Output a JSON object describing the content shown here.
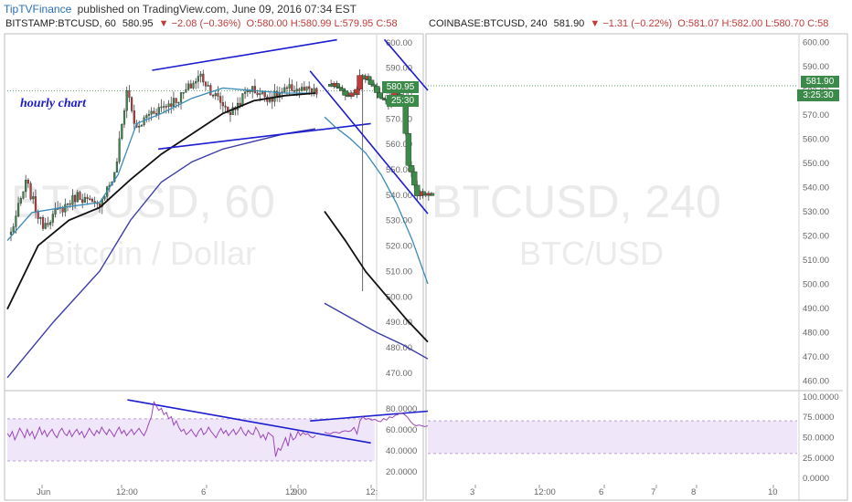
{
  "header": {
    "brand": "TipTVFinance",
    "published": "published on TradingView.com, June 09, 2016 07:34 EST"
  },
  "left_panel": {
    "symbol": "BITSTAMP:BTCUSD, 60",
    "last": "580.95",
    "arrow": "▼",
    "change": "−2.08 (−0.36%)",
    "ohlc": "O:580.00 H:580.99 L:579.95 C:58",
    "annotation": "hourly chart",
    "watermark_symbol": "BTCUSD, 60",
    "watermark_name": "Bitcoin / Dollar",
    "price_badge": "580.95",
    "countdown_badge": "25:30"
  },
  "right_panel": {
    "symbol": "COINBASE:BTCUSD, 240",
    "last": "581.90",
    "arrow": "▼",
    "change": "−1.31 (−0.22%)",
    "ohlc": "O:581.07 H:582.00 L:580.70 C:58",
    "watermark_symbol": "BTCUSD, 240",
    "watermark_name": "BTC/USD",
    "price_badge": "581.90",
    "countdown_badge": "3:25:30"
  },
  "colors": {
    "up": "#3c8a4a",
    "down": "#c23a3a",
    "trendline": "#1c1cd0",
    "ma_fast": "#3a8ab8",
    "ma_mid": "#111111",
    "ma_slow": "#3c3cab",
    "rsi": "#9a48b8",
    "rsi_band": "#eadcf7",
    "badge_price": "#3c8a4a",
    "badge_text": "#ffffff"
  },
  "chart_data": [
    {
      "type": "candlestick",
      "panel": "left",
      "title": "BITSTAMP:BTCUSD, 60",
      "price_ticks": [
        470,
        480,
        490,
        500,
        510,
        520,
        530,
        540,
        550,
        560,
        570,
        580,
        590,
        600
      ],
      "price_labels": [
        "470.00",
        "480.00",
        "490.00",
        "500.00",
        "510.00",
        "520.00",
        "530.00",
        "540.00",
        "550.00",
        "560.00",
        "570.00",
        "580.00",
        "590.00",
        "600.00"
      ],
      "ylim": [
        464,
        603
      ],
      "time_labels": [
        "Jun",
        "12:00",
        "6",
        "12:00",
        "9",
        "12:"
      ],
      "rsi_ticks": [
        20,
        40,
        60,
        80
      ],
      "rsi_labels": [
        "20.0000",
        "40.0000",
        "60.0000",
        "80.0000"
      ],
      "rsi_ylim": [
        10,
        95
      ],
      "rsi_band": [
        30,
        70
      ],
      "rsi_values": [
        56,
        53,
        58,
        50,
        55,
        61,
        57,
        52,
        60,
        54,
        58,
        51,
        56,
        62,
        55,
        59,
        53,
        57,
        60,
        55,
        52,
        58,
        61,
        56,
        54,
        59,
        53,
        57,
        60,
        55,
        58,
        52,
        56,
        61,
        57,
        54,
        59,
        56,
        62,
        58,
        55,
        60,
        57,
        53,
        58,
        62,
        56,
        59,
        54,
        57,
        60,
        55,
        58,
        61,
        57,
        54,
        59,
        66,
        72,
        86,
        82,
        78,
        80,
        74,
        76,
        70,
        72,
        64,
        68,
        62,
        58,
        60,
        55,
        57,
        60,
        56,
        53,
        58,
        61,
        55,
        57,
        62,
        58,
        55,
        52,
        57,
        61,
        56,
        59,
        54,
        57,
        60,
        55,
        58,
        62,
        57,
        54,
        59,
        56,
        55,
        62,
        58,
        52,
        55,
        50,
        57,
        55,
        53,
        34,
        42,
        40,
        46,
        52,
        44,
        56,
        50,
        52,
        58,
        54,
        57,
        55,
        56,
        53,
        52,
        54
      ]
    },
    {
      "type": "candlestick",
      "panel": "right",
      "title": "COINBASE:BTCUSD, 240",
      "price_ticks": [
        460,
        470,
        480,
        490,
        500,
        510,
        520,
        530,
        540,
        550,
        560,
        570,
        580,
        590,
        600
      ],
      "price_labels": [
        "460.00",
        "470.00",
        "480.00",
        "490.00",
        "500.00",
        "510.00",
        "520.00",
        "530.00",
        "540.00",
        "550.00",
        "560.00",
        "570.00",
        "580.00",
        "590.00",
        "600.00"
      ],
      "ylim": [
        457,
        603
      ],
      "time_labels": [
        "3",
        "12:00",
        "6",
        "7",
        "8",
        "10"
      ],
      "rsi_ticks": [
        0,
        25,
        50,
        75,
        100
      ],
      "rsi_labels": [
        "0.0000",
        "25.0000",
        "50.0000",
        "75.0000",
        "100.0000"
      ],
      "rsi_ylim": [
        -5,
        105
      ],
      "rsi_band": [
        30,
        70
      ],
      "rsi_values": [
        64,
        63,
        64,
        65,
        64,
        66,
        70,
        75,
        78,
        80,
        78,
        77,
        74,
        75,
        71,
        73,
        69,
        70,
        72,
        71,
        73,
        72,
        75,
        70,
        54,
        62,
        58,
        57,
        58,
        57,
        55,
        56,
        56,
        54,
        55,
        56
      ]
    }
  ]
}
